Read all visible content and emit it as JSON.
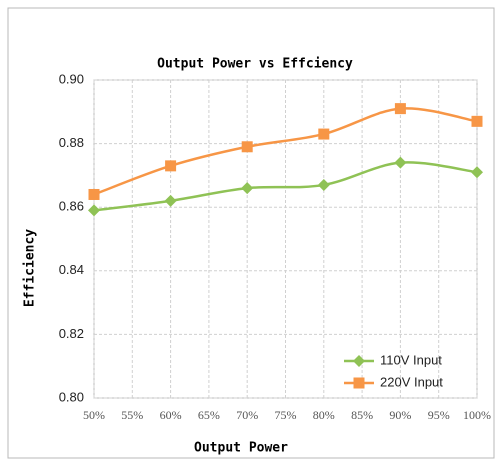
{
  "chart_data": {
    "type": "line",
    "title": "Output Power vs Effciency",
    "x_label": "Output Power",
    "y_label": "Efficiency",
    "x": [
      50,
      60,
      70,
      80,
      90,
      100
    ],
    "series": [
      {
        "name": "110V Input",
        "color": "#8fc255",
        "marker": "diamond",
        "values": [
          0.859,
          0.862,
          0.866,
          0.867,
          0.874,
          0.871
        ]
      },
      {
        "name": "220V Input",
        "color": "#f79646",
        "marker": "square",
        "values": [
          0.864,
          0.873,
          0.879,
          0.883,
          0.891,
          0.887
        ]
      }
    ],
    "xlim": [
      50,
      100
    ],
    "xticks": [
      {
        "value": 50,
        "label": "50%"
      },
      {
        "value": 55,
        "label": "55%"
      },
      {
        "value": 60,
        "label": "60%"
      },
      {
        "value": 65,
        "label": "65%"
      },
      {
        "value": 70,
        "label": "70%"
      },
      {
        "value": 75,
        "label": "75%"
      },
      {
        "value": 80,
        "label": "80%"
      },
      {
        "value": 85,
        "label": "85%"
      },
      {
        "value": 90,
        "label": "90%"
      },
      {
        "value": 95,
        "label": "95%"
      },
      {
        "value": 100,
        "label": "100%"
      }
    ],
    "ylim": [
      0.8,
      0.9
    ],
    "yticks": [
      {
        "value": 0.8,
        "label": "0.80"
      },
      {
        "value": 0.82,
        "label": "0.82"
      },
      {
        "value": 0.84,
        "label": "0.84"
      },
      {
        "value": 0.86,
        "label": "0.86"
      },
      {
        "value": 0.88,
        "label": "0.88"
      },
      {
        "value": 0.9,
        "label": "0.90"
      }
    ],
    "grid": true,
    "legend": "lower right"
  }
}
